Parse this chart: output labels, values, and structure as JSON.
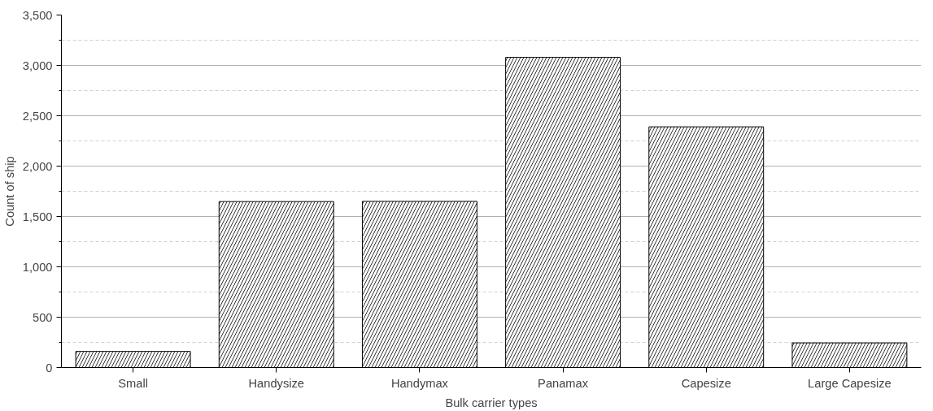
{
  "chart_data": {
    "type": "bar",
    "xlabel": "Bulk carrier types",
    "ylabel": "Count of ship",
    "categories": [
      "Small",
      "Handysize",
      "Handymax",
      "Panamax",
      "Capesize",
      "Large Capesize"
    ],
    "values": [
      160,
      1648,
      1650,
      3080,
      2390,
      245
    ],
    "color": "#ffffff",
    "ylim": [
      0,
      3500
    ],
    "yticks": [
      0,
      500,
      {
        "value": 1000,
        "label": "1,000"
      },
      {
        "value": 1500,
        "label": "1,500"
      },
      {
        "value": 2000,
        "label": "2,000"
      },
      {
        "value": 2500,
        "label": "2,500"
      },
      {
        "value": 3000,
        "label": "3,000"
      },
      {
        "value": 3500,
        "label": "3,500"
      }
    ],
    "grid": "y"
  }
}
